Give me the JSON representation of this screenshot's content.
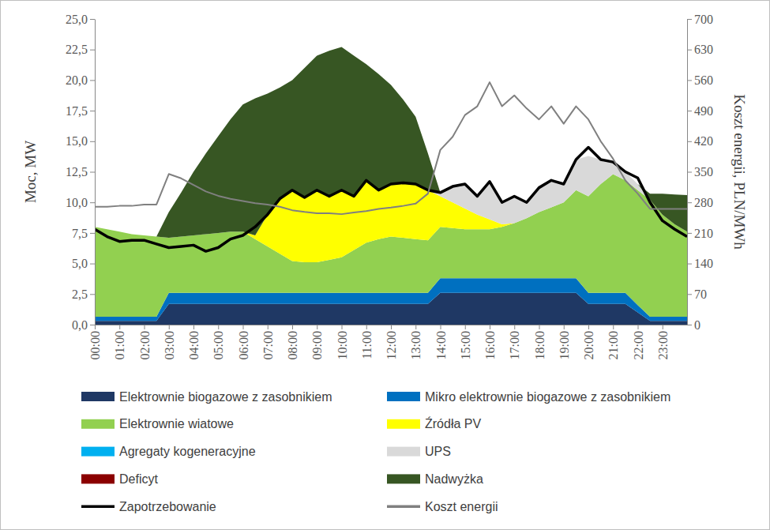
{
  "chart_data": {
    "type": "area",
    "stacked": true,
    "legend": "bottom",
    "ylabel": "Moc, MW",
    "y2label": "Koszt energii, PLN/MWh",
    "x": [
      0,
      0.5,
      1,
      1.5,
      2,
      2.5,
      3,
      3.5,
      4,
      4.5,
      5,
      5.5,
      6,
      6.5,
      7,
      7.5,
      8,
      8.5,
      9,
      9.5,
      10,
      10.5,
      11,
      11.5,
      12,
      12.5,
      13,
      13.5,
      14,
      14.5,
      15,
      15.5,
      16,
      16.5,
      17,
      17.5,
      18,
      18.5,
      19,
      19.5,
      20,
      20.5,
      21,
      21.5,
      22,
      22.5,
      23,
      23.5,
      24
    ],
    "xlim": [
      0,
      24
    ],
    "xticks": [
      {
        "value": 0,
        "label": "00:00"
      },
      {
        "value": 1,
        "label": "01:00"
      },
      {
        "value": 2,
        "label": "02:00"
      },
      {
        "value": 3,
        "label": "03:00"
      },
      {
        "value": 4,
        "label": "04:00"
      },
      {
        "value": 5,
        "label": "05:00"
      },
      {
        "value": 6,
        "label": "06:00"
      },
      {
        "value": 7,
        "label": "07:00"
      },
      {
        "value": 8,
        "label": "08:00"
      },
      {
        "value": 9,
        "label": "09:00"
      },
      {
        "value": 10,
        "label": "10:00"
      },
      {
        "value": 11,
        "label": "11:00"
      },
      {
        "value": 12,
        "label": "12:00"
      },
      {
        "value": 13,
        "label": "13:00"
      },
      {
        "value": 14,
        "label": "14:00"
      },
      {
        "value": 15,
        "label": "15:00"
      },
      {
        "value": 16,
        "label": "16:00"
      },
      {
        "value": 17,
        "label": "17:00"
      },
      {
        "value": 18,
        "label": "18:00"
      },
      {
        "value": 19,
        "label": "19:00"
      },
      {
        "value": 20,
        "label": "20:00"
      },
      {
        "value": 21,
        "label": "21:00"
      },
      {
        "value": 22,
        "label": "22:00"
      },
      {
        "value": 23,
        "label": "23:00"
      }
    ],
    "ylim": [
      0,
      25
    ],
    "yticks": [
      {
        "value": 0,
        "label": "0,0"
      },
      {
        "value": 2.5,
        "label": "2,5"
      },
      {
        "value": 5,
        "label": "5,0"
      },
      {
        "value": 7.5,
        "label": "7,5"
      },
      {
        "value": 10,
        "label": "10,0"
      },
      {
        "value": 12.5,
        "label": "12,5"
      },
      {
        "value": 15,
        "label": "15,0"
      },
      {
        "value": 17.5,
        "label": "17,5"
      },
      {
        "value": 20,
        "label": "20,0"
      },
      {
        "value": 22.5,
        "label": "22,5"
      },
      {
        "value": 25,
        "label": "25,0"
      }
    ],
    "y2lim": [
      0,
      700
    ],
    "y2ticks": [
      0,
      70,
      140,
      210,
      280,
      350,
      420,
      490,
      560,
      630,
      700
    ],
    "series": [
      {
        "name": "Elektrownie biogazowe z zasobnikiem",
        "type": "area",
        "color": "#1f3864",
        "values": [
          0.3,
          0.3,
          0.3,
          0.3,
          0.3,
          0.3,
          1.7,
          1.7,
          1.7,
          1.7,
          1.7,
          1.7,
          1.7,
          1.7,
          1.7,
          1.7,
          1.7,
          1.7,
          1.7,
          1.7,
          1.7,
          1.7,
          1.7,
          1.7,
          1.7,
          1.7,
          1.7,
          1.7,
          2.6,
          2.6,
          2.6,
          2.6,
          2.6,
          2.6,
          2.6,
          2.6,
          2.6,
          2.6,
          2.6,
          2.6,
          1.7,
          1.7,
          1.7,
          1.7,
          1.0,
          0.3,
          0.3,
          0.3,
          0.3
        ]
      },
      {
        "name": "Mikro elektrownie biogazowe z zasobnikiem",
        "type": "area",
        "color": "#0070c0",
        "values": [
          0.35,
          0.35,
          0.35,
          0.35,
          0.35,
          0.35,
          0.9,
          0.9,
          0.9,
          0.9,
          0.9,
          0.9,
          0.9,
          0.9,
          0.9,
          0.9,
          0.9,
          0.9,
          0.9,
          0.9,
          0.9,
          0.9,
          0.9,
          0.9,
          0.9,
          0.9,
          0.9,
          0.9,
          1.2,
          1.2,
          1.2,
          1.2,
          1.2,
          1.2,
          1.2,
          1.2,
          1.2,
          1.2,
          1.2,
          1.2,
          0.9,
          0.9,
          0.9,
          0.9,
          0.6,
          0.35,
          0.35,
          0.35,
          0.35
        ]
      },
      {
        "name": "Elektrownie wiatowe",
        "type": "area",
        "color": "#92d050",
        "values": [
          7.35,
          7.15,
          6.95,
          6.75,
          6.65,
          6.55,
          4.5,
          4.6,
          4.7,
          4.8,
          4.9,
          5.0,
          5.0,
          4.4,
          3.8,
          3.2,
          2.6,
          2.5,
          2.5,
          2.7,
          2.9,
          3.5,
          4.1,
          4.4,
          4.6,
          4.5,
          4.4,
          4.3,
          4.2,
          4.1,
          4.0,
          4.0,
          4.0,
          4.2,
          4.5,
          4.9,
          5.4,
          5.8,
          6.2,
          7.2,
          7.9,
          8.9,
          9.7,
          9.2,
          9.4,
          9.55,
          8.35,
          7.55,
          6.95
        ]
      },
      {
        "name": "Źródła PV",
        "type": "area",
        "color": "#ffff00",
        "values": [
          0,
          0,
          0,
          0,
          0,
          0,
          0,
          0,
          0,
          0,
          0,
          0,
          0,
          0.3,
          2.6,
          4.5,
          5.8,
          5.3,
          5.9,
          5.2,
          5.5,
          4.4,
          5.1,
          4.0,
          4.3,
          4.5,
          4.5,
          4.1,
          2.5,
          2.1,
          1.7,
          1.2,
          0.8,
          0.2,
          0,
          0,
          0,
          0,
          0,
          0,
          0,
          0,
          0,
          0,
          0,
          0,
          0,
          0,
          0
        ]
      },
      {
        "name": "Agregaty kogeneracyjne",
        "type": "area",
        "color": "#00b0f0",
        "values": [
          0,
          0,
          0,
          0,
          0,
          0,
          0,
          0,
          0,
          0,
          0,
          0,
          0,
          0,
          0,
          0,
          0,
          0,
          0,
          0,
          0,
          0,
          0,
          0,
          0,
          0,
          0,
          0,
          0,
          0,
          0,
          0,
          0,
          0,
          0,
          0,
          0,
          0,
          0,
          0,
          0,
          0,
          0,
          0,
          0,
          0,
          0,
          0,
          0
        ]
      },
      {
        "name": "UPS",
        "type": "area",
        "color": "#d9d9d9",
        "values": [
          0,
          0,
          0,
          0,
          0,
          0,
          0,
          0,
          0,
          0,
          0,
          0,
          0,
          0,
          0,
          0,
          0,
          0,
          0,
          0,
          0,
          0,
          0,
          0,
          0,
          0,
          0,
          0,
          0.3,
          1.3,
          2.0,
          1.5,
          3.1,
          1.8,
          2.2,
          1.3,
          2.0,
          2.2,
          1.5,
          2.5,
          3.3,
          2.0,
          1.0,
          0.7,
          0.5,
          0,
          0,
          0,
          0
        ]
      },
      {
        "name": "Deficyt",
        "type": "area",
        "color": "#8b0000",
        "values": [
          0,
          0,
          0,
          0,
          0,
          0,
          0,
          0,
          0,
          0,
          0,
          0,
          0,
          0,
          0,
          0,
          0,
          0,
          0,
          0,
          0,
          0,
          0,
          0,
          0,
          0,
          0,
          0,
          0,
          0,
          0,
          0,
          0,
          0,
          0,
          0,
          0,
          0,
          0,
          0,
          0,
          0,
          0,
          0,
          0,
          0,
          0,
          0,
          0
        ]
      },
      {
        "name": "Nadwyżka",
        "type": "area",
        "color": "#375623",
        "values": [
          0,
          0,
          0,
          0,
          0,
          0,
          2.1,
          3.6,
          5.2,
          6.6,
          7.9,
          9.2,
          10.4,
          11.2,
          9.9,
          9.1,
          9.0,
          10.6,
          11.0,
          11.9,
          11.7,
          11.5,
          9.5,
          9.5,
          8.1,
          6.8,
          5.5,
          3.0,
          0,
          0,
          0,
          0,
          0,
          0,
          0,
          0,
          0,
          0,
          0,
          0,
          0,
          0,
          0,
          0,
          0,
          0.5,
          1.7,
          2.45,
          3.0
        ]
      },
      {
        "name": "Zapotrzebowanie",
        "type": "line",
        "color": "#000000",
        "values": [
          7.8,
          7.2,
          6.8,
          6.9,
          6.9,
          6.6,
          6.3,
          6.4,
          6.5,
          6.0,
          6.3,
          7.0,
          7.3,
          8.0,
          9.0,
          10.3,
          11.0,
          10.4,
          11.0,
          10.5,
          11.0,
          10.5,
          11.8,
          11.0,
          11.5,
          11.6,
          11.5,
          11.0,
          10.8,
          11.3,
          11.5,
          10.5,
          11.7,
          10.0,
          10.5,
          10.0,
          11.2,
          11.8,
          11.5,
          13.5,
          14.5,
          13.5,
          13.3,
          12.5,
          12.0,
          10.0,
          8.5,
          7.8,
          7.2
        ]
      },
      {
        "name": "Koszt energii",
        "type": "line",
        "axis": "y2",
        "color": "#808080",
        "values": [
          270,
          270,
          272,
          272,
          275,
          275,
          345,
          335,
          320,
          305,
          295,
          288,
          283,
          278,
          275,
          270,
          262,
          258,
          255,
          255,
          253,
          257,
          260,
          265,
          268,
          272,
          277,
          300,
          400,
          430,
          480,
          500,
          555,
          500,
          525,
          495,
          470,
          500,
          460,
          500,
          470,
          420,
          380,
          330,
          300,
          265,
          265,
          265,
          265
        ]
      }
    ]
  }
}
